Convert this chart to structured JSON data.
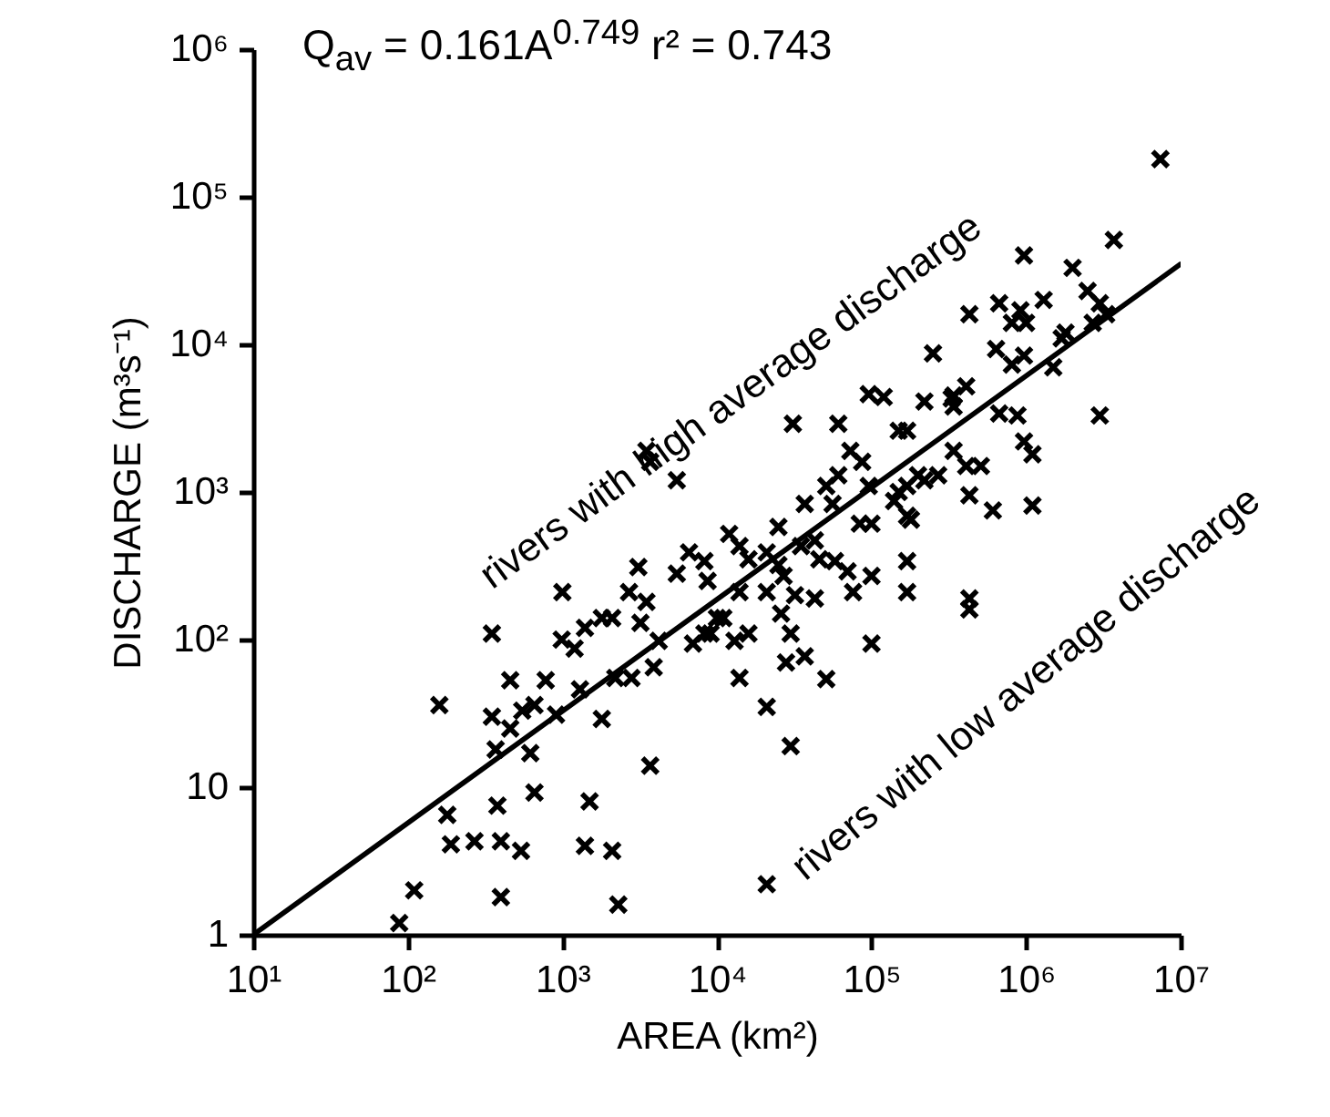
{
  "chart_data": {
    "type": "scatter",
    "xlabel": "AREA (km²)",
    "ylabel": "DISCHARGE (m³s⁻¹)",
    "log": "xy",
    "marker": "cross",
    "xlim": [
      10,
      10000000
    ],
    "ylim": [
      1,
      1000000
    ],
    "xticks": [
      {
        "value": 10,
        "label": "10¹"
      },
      {
        "value": 100,
        "label": "10²"
      },
      {
        "value": 1000,
        "label": "10³"
      },
      {
        "value": 10000,
        "label": "10⁴"
      },
      {
        "value": 100000,
        "label": "10⁵"
      },
      {
        "value": 1000000,
        "label": "10⁶"
      },
      {
        "value": 10000000,
        "label": "10⁷"
      }
    ],
    "yticks": [
      1,
      10,
      {
        "value": 100,
        "label": "10²"
      },
      {
        "value": 1000,
        "label": "10³"
      },
      {
        "value": 10000,
        "label": "10⁴"
      },
      {
        "value": 100000,
        "label": "10⁵"
      },
      {
        "value": 1000000,
        "label": "10⁶"
      }
    ],
    "annotations": [
      "Q$_{av}$ = 0.161A$^{0.749}$   r² = 0.743",
      "rivers with high average discharge",
      "rivers with low average discharge"
    ],
    "series": [
      {
        "color": "#000000",
        "x": [
          3700,
          5500,
          1000,
          350,
          160,
          460,
          780,
          350,
          550,
          660,
          910,
          460,
          370,
          620,
          1800,
          3700,
          180,
          380,
          660,
          1500,
          190,
          270,
          400,
          540,
          1400,
          2100,
          110,
          400,
          2300,
          88,
          990,
          1200,
          1400,
          1800,
          2100,
          2700,
          3100,
          3500,
          3200,
          1300,
          2200,
          2800,
          3900,
          4200,
          5500,
          6600,
          8300,
          8700,
          7000,
          8300,
          10000,
          3500,
          31000,
          61000,
          96000,
          120000,
          220000,
          330000,
          150000,
          73000,
          87000,
          61000,
          51000,
          37000,
          56000,
          96000,
          170000,
          220000,
          270000,
          140000,
          180000,
          84000,
          100000,
          340000,
          12000,
          14000,
          25000,
          16000,
          21000,
          25000,
          27000,
          35000,
          43000,
          46000,
          58000,
          70000,
          100000,
          170000,
          170000,
          76000,
          43000,
          32000,
          26000,
          30000,
          21000,
          14000,
          11000,
          16000,
          9100,
          13000,
          28000,
          37000,
          14000,
          51000,
          100000,
          21000,
          30000,
          21000,
          7400000,
          3700000,
          970000,
          2000000,
          430000,
          670000,
          920000,
          1300000,
          810000,
          1000000,
          2500000,
          3000000,
          3300000,
          2700000,
          1800000,
          1700000,
          250000,
          640000,
          970000,
          810000,
          1500000,
          340000,
          410000,
          340000,
          670000,
          880000,
          3000000,
          170000,
          970000,
          1100000,
          410000,
          510000,
          200000,
          150000,
          170000,
          430000,
          610000,
          1100000,
          430000,
          430000
        ],
        "values": [
          1600,
          1200,
          210,
          110,
          36,
          53,
          53,
          30,
          33,
          36,
          31,
          25,
          18,
          17,
          29,
          14,
          6.5,
          7.5,
          9.2,
          8,
          4.1,
          4.3,
          4.3,
          3.7,
          4.0,
          3.7,
          2.0,
          1.8,
          1.6,
          1.2,
          100,
          87,
          120,
          140,
          140,
          210,
          310,
          180,
          130,
          46,
          55,
          55,
          65,
          98,
          280,
          390,
          340,
          250,
          94,
          110,
          140,
          1900,
          2900,
          2900,
          4600,
          4400,
          4100,
          4300,
          2600,
          1900,
          1600,
          1300,
          1100,
          830,
          830,
          1100,
          1100,
          1200,
          1300,
          870,
          650,
          610,
          610,
          1900,
          520,
          430,
          580,
          350,
          390,
          320,
          270,
          430,
          470,
          350,
          340,
          290,
          270,
          340,
          210,
          210,
          190,
          200,
          150,
          110,
          210,
          210,
          140,
          110,
          110,
          98,
          70,
          77,
          55,
          54,
          94,
          35,
          19,
          2.2,
          180000,
          51000,
          40000,
          33000,
          16000,
          19000,
          17000,
          20000,
          14000,
          14000,
          23000,
          19000,
          16000,
          14000,
          12000,
          11000,
          8700,
          9300,
          8400,
          7300,
          7000,
          4500,
          5200,
          3800,
          3400,
          3300,
          3300,
          2600,
          2200,
          1800,
          1500,
          1500,
          1300,
          1000,
          690,
          950,
          750,
          810,
          190,
          160
        ]
      },
      {
        "type": "line",
        "marker": "none",
        "color": "#000000",
        "x": [
          10,
          10000000
        ],
        "values": [
          1,
          35000
        ]
      }
    ]
  }
}
